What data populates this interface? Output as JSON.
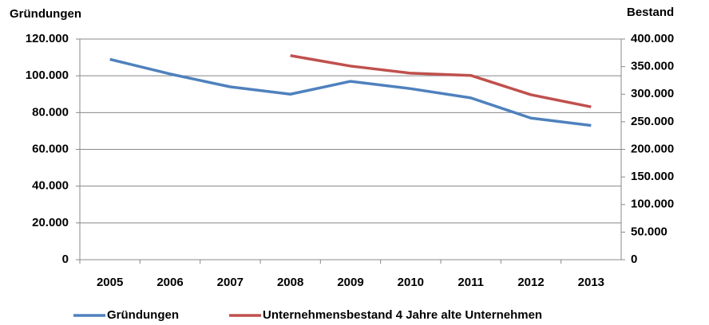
{
  "chart_data": {
    "type": "line",
    "y_label": "Gründungen",
    "y2_label": "Bestand",
    "categories": [
      "2005",
      "2006",
      "2007",
      "2008",
      "2009",
      "2010",
      "2011",
      "2012",
      "2013"
    ],
    "series": [
      {
        "name": "Gründungen",
        "color": "#4f81bd",
        "values": [
          109000,
          101000,
          94000,
          90000,
          97000,
          93000,
          88000,
          77000,
          73000
        ]
      },
      {
        "name": "Unternehmensbestand 4 Jahre alte Unternehmen",
        "color": "#c0504d",
        "axis": "y2",
        "values": [
          null,
          null,
          null,
          370000,
          351000,
          338000,
          334000,
          299000,
          277000
        ]
      }
    ],
    "ylim": [
      0,
      120000
    ],
    "yticks": [
      0,
      {
        "value": 20000,
        "label": "20.000"
      },
      {
        "value": 40000,
        "label": "40.000"
      },
      {
        "value": 60000,
        "label": "60.000"
      },
      {
        "value": 80000,
        "label": "80.000"
      },
      {
        "value": 100000,
        "label": "100.000"
      },
      {
        "value": 120000,
        "label": "120.000"
      }
    ],
    "y2lim": [
      0,
      400000
    ],
    "y2ticks": [
      0,
      {
        "value": 50000,
        "label": "50.000"
      },
      {
        "value": 100000,
        "label": "100.000"
      },
      {
        "value": 150000,
        "label": "150.000"
      },
      {
        "value": 200000,
        "label": "200.000"
      },
      {
        "value": 250000,
        "label": "250.000"
      },
      {
        "value": 300000,
        "label": "300.000"
      },
      {
        "value": 350000,
        "label": "350.000"
      },
      {
        "value": 400000,
        "label": "400.000"
      }
    ],
    "grid": true
  }
}
